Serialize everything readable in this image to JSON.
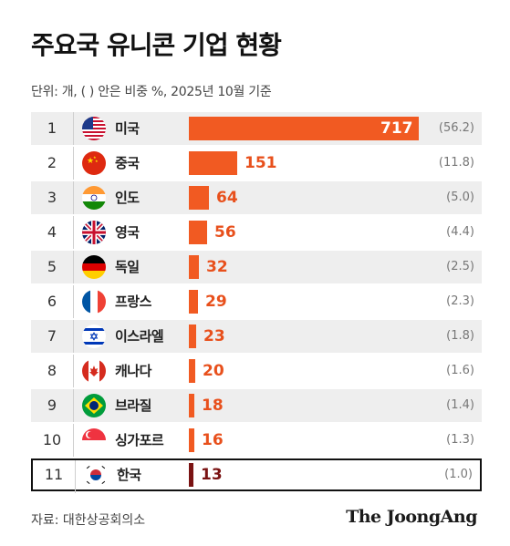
{
  "title": "주요국 유니콘 기업 현황",
  "subtitle": "단위: 개, ( ) 안은 비중 %, 2025년 10월 기준",
  "source": "자료: 대한상공회의소",
  "brand": "The JoongAng",
  "colors": {
    "bar": "#f15a22",
    "highlight_bar": "#7a1313",
    "row_shade": "#eeeeee"
  },
  "chart_data": {
    "type": "bar",
    "orientation": "horizontal",
    "title": "주요국 유니콘 기업 현황",
    "subtitle": "단위: 개, ( ) 안은 비중 %, 2025년 10월 기준",
    "categories": [
      "미국",
      "중국",
      "인도",
      "영국",
      "독일",
      "프랑스",
      "이스라엘",
      "캐나다",
      "브라질",
      "싱가포르",
      "한국"
    ],
    "ranks": [
      "1",
      "2",
      "3",
      "4",
      "5",
      "6",
      "7",
      "8",
      "9",
      "10",
      "11"
    ],
    "values": [
      717,
      151,
      64,
      56,
      32,
      29,
      23,
      20,
      18,
      16,
      13
    ],
    "shares": [
      "(56.2)",
      "(11.8)",
      "(5.0)",
      "(4.4)",
      "(2.5)",
      "(2.3)",
      "(1.8)",
      "(1.6)",
      "(1.4)",
      "(1.3)",
      "(1.0)"
    ],
    "flags": [
      "us-flag-icon",
      "cn-flag-icon",
      "in-flag-icon",
      "gb-flag-icon",
      "de-flag-icon",
      "fr-flag-icon",
      "il-flag-icon",
      "ca-flag-icon",
      "br-flag-icon",
      "sg-flag-icon",
      "kr-flag-icon"
    ],
    "highlight": "한국",
    "xlim": [
      0,
      717
    ],
    "grid": false,
    "legend": "none"
  }
}
